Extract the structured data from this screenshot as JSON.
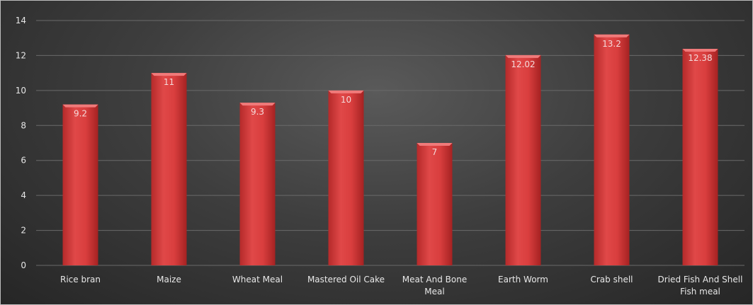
{
  "chart_data": {
    "type": "bar",
    "title": "",
    "xlabel": "",
    "ylabel": "",
    "categories": [
      [
        "Rice bran"
      ],
      [
        "Maize"
      ],
      [
        "Wheat Meal"
      ],
      [
        "Mastered Oil Cake"
      ],
      [
        "Meat And Bone",
        "Meal"
      ],
      [
        "Earth Worm"
      ],
      [
        "Crab shell"
      ],
      [
        "Dried Fish And Shell",
        "Fish meal"
      ]
    ],
    "values": [
      9.2,
      11,
      9.3,
      10,
      7,
      12.02,
      13.2,
      12.38
    ],
    "data_labels": [
      "9.2",
      "11",
      "9.3",
      "10",
      "7",
      "12.02",
      "13.2",
      "12.38"
    ],
    "ylim": [
      0,
      14
    ],
    "yticks": [
      0,
      2,
      4,
      6,
      8,
      10,
      12,
      14
    ],
    "grid": true,
    "legend": "none",
    "colors": {
      "bar": "#d63c3c",
      "bar_light": "#e85a5a",
      "bar_dark": "#a82424",
      "grid": "#6a6a6a",
      "text": "#e6e6e6"
    }
  }
}
